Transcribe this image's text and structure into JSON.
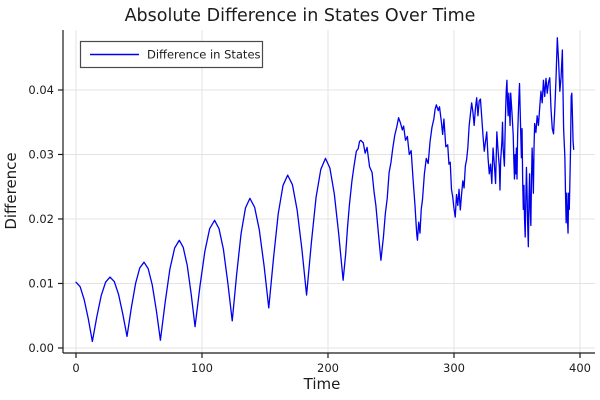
{
  "title": "Absolute Difference in States Over Time",
  "chart_data": {
    "type": "line",
    "title": "Absolute Difference in States Over Time",
    "xlabel": "Time",
    "ylabel": "Difference",
    "xlim": [
      -10.3,
      411.9
    ],
    "ylim": [
      -0.00078,
      0.0493
    ],
    "grid": true,
    "grid_color": "#e3e3e3",
    "spine_color": "#1a1a1a",
    "x_ticks": {
      "values": [
        0,
        100,
        200,
        300,
        400
      ],
      "labels": [
        "0",
        "100",
        "200",
        "300",
        "400"
      ]
    },
    "y_ticks": {
      "values": [
        0,
        0.01,
        0.02,
        0.03,
        0.04
      ],
      "labels": [
        "0.00",
        "0.01",
        "0.02",
        "0.03",
        "0.04"
      ]
    },
    "legend": {
      "position": "top-left",
      "border_color": "#4a4a4a",
      "background": "#ffffff",
      "entries": [
        {
          "label": "Difference in States",
          "color": "#0000ee"
        }
      ]
    },
    "series": [
      {
        "name": "Difference in States",
        "color": "#0000ee",
        "points": [
          [
            0,
            0.0102
          ],
          [
            3.3,
            0.0095
          ],
          [
            6.5,
            0.0075
          ],
          [
            9.8,
            0.0045
          ],
          [
            13,
            0.001
          ],
          [
            16.5,
            0.0048
          ],
          [
            20,
            0.0081
          ],
          [
            23.5,
            0.0102
          ],
          [
            27,
            0.011
          ],
          [
            30.4,
            0.0103
          ],
          [
            33.8,
            0.0083
          ],
          [
            37.1,
            0.0053
          ],
          [
            40.5,
            0.0018
          ],
          [
            43.9,
            0.0062
          ],
          [
            47.3,
            0.01
          ],
          [
            50.6,
            0.0124
          ],
          [
            54,
            0.0133
          ],
          [
            57.3,
            0.0123
          ],
          [
            60.5,
            0.0098
          ],
          [
            63.8,
            0.0058
          ],
          [
            67,
            0.0012
          ],
          [
            70.8,
            0.0071
          ],
          [
            74.5,
            0.0122
          ],
          [
            78.3,
            0.0155
          ],
          [
            82,
            0.0167
          ],
          [
            85.1,
            0.0156
          ],
          [
            88.3,
            0.0128
          ],
          [
            91.4,
            0.0084
          ],
          [
            94.5,
            0.0033
          ],
          [
            98.4,
            0.0096
          ],
          [
            102.3,
            0.015
          ],
          [
            106.1,
            0.0185
          ],
          [
            110,
            0.0198
          ],
          [
            113.5,
            0.0185
          ],
          [
            117,
            0.0153
          ],
          [
            120.5,
            0.0101
          ],
          [
            124,
            0.0042
          ],
          [
            127.5,
            0.0114
          ],
          [
            131,
            0.0177
          ],
          [
            134.5,
            0.0217
          ],
          [
            138,
            0.0232
          ],
          [
            141.8,
            0.0218
          ],
          [
            145.5,
            0.0183
          ],
          [
            149.3,
            0.0127
          ],
          [
            153,
            0.0062
          ],
          [
            156.8,
            0.014
          ],
          [
            160.5,
            0.0208
          ],
          [
            164.3,
            0.0252
          ],
          [
            168,
            0.0268
          ],
          [
            171.8,
            0.0253
          ],
          [
            175.5,
            0.0214
          ],
          [
            179.3,
            0.0153
          ],
          [
            183,
            0.0082
          ],
          [
            186.8,
            0.0163
          ],
          [
            190.5,
            0.0233
          ],
          [
            194.3,
            0.0277
          ],
          [
            198,
            0.0294
          ],
          [
            201.5,
            0.0279
          ],
          [
            205,
            0.0239
          ],
          [
            208.5,
            0.0177
          ],
          [
            212,
            0.0105
          ],
          [
            214,
            0.0145
          ],
          [
            215.5,
            0.0187
          ],
          [
            217,
            0.0222
          ],
          [
            219,
            0.0259
          ],
          [
            220.5,
            0.028
          ],
          [
            222.5,
            0.0305
          ],
          [
            224,
            0.0309
          ],
          [
            225,
            0.032
          ],
          [
            226,
            0.0322
          ],
          [
            228,
            0.0318
          ],
          [
            229.5,
            0.0302
          ],
          [
            231,
            0.0311
          ],
          [
            233,
            0.0281
          ],
          [
            235,
            0.0272
          ],
          [
            236.5,
            0.0243
          ],
          [
            238,
            0.0221
          ],
          [
            240,
            0.0178
          ],
          [
            242,
            0.0136
          ],
          [
            244,
            0.0172
          ],
          [
            245.5,
            0.0208
          ],
          [
            247,
            0.0232
          ],
          [
            248.5,
            0.0272
          ],
          [
            250,
            0.0288
          ],
          [
            251.5,
            0.0311
          ],
          [
            253,
            0.033
          ],
          [
            254.5,
            0.0342
          ],
          [
            256,
            0.0357
          ],
          [
            257.5,
            0.0349
          ],
          [
            259,
            0.0338
          ],
          [
            260,
            0.0344
          ],
          [
            261.5,
            0.0322
          ],
          [
            263,
            0.0328
          ],
          [
            264.5,
            0.03
          ],
          [
            266,
            0.0306
          ],
          [
            267.5,
            0.0262
          ],
          [
            269,
            0.0222
          ],
          [
            270,
            0.019
          ],
          [
            270.5,
            0.0175
          ],
          [
            271,
            0.0167
          ],
          [
            272,
            0.0195
          ],
          [
            273,
            0.0178
          ],
          [
            274,
            0.0215
          ],
          [
            275,
            0.023
          ],
          [
            276.5,
            0.027
          ],
          [
            278,
            0.0294
          ],
          [
            279.5,
            0.0286
          ],
          [
            281,
            0.032
          ],
          [
            282.5,
            0.0342
          ],
          [
            284,
            0.0355
          ],
          [
            285,
            0.037
          ],
          [
            286,
            0.0377
          ],
          [
            287.5,
            0.0368
          ],
          [
            288.5,
            0.0374
          ],
          [
            290,
            0.035
          ],
          [
            291,
            0.0331
          ],
          [
            292,
            0.0355
          ],
          [
            293.5,
            0.0312
          ],
          [
            295,
            0.0315
          ],
          [
            296,
            0.0285
          ],
          [
            297,
            0.0288
          ],
          [
            298,
            0.0246
          ],
          [
            299,
            0.0234
          ],
          [
            300,
            0.0216
          ],
          [
            301,
            0.0203
          ],
          [
            302,
            0.0238
          ],
          [
            303,
            0.0221
          ],
          [
            304,
            0.0246
          ],
          [
            305,
            0.0214
          ],
          [
            306,
            0.0238
          ],
          [
            307,
            0.0259
          ],
          [
            308,
            0.0248
          ],
          [
            309,
            0.0282
          ],
          [
            310,
            0.0292
          ],
          [
            311,
            0.0311
          ],
          [
            312,
            0.0344
          ],
          [
            313,
            0.0362
          ],
          [
            314,
            0.038
          ],
          [
            315,
            0.0366
          ],
          [
            316,
            0.0345
          ],
          [
            317,
            0.0371
          ],
          [
            318,
            0.0388
          ],
          [
            319,
            0.036
          ],
          [
            320,
            0.0383
          ],
          [
            321,
            0.0386
          ],
          [
            322,
            0.0358
          ],
          [
            323,
            0.033
          ],
          [
            324,
            0.0305
          ],
          [
            325,
            0.032
          ],
          [
            326,
            0.0335
          ],
          [
            327,
            0.0295
          ],
          [
            328,
            0.027
          ],
          [
            329,
            0.0285
          ],
          [
            330,
            0.0255
          ],
          [
            331,
            0.031
          ],
          [
            332,
            0.0285
          ],
          [
            333,
            0.0255
          ],
          [
            334,
            0.0335
          ],
          [
            335,
            0.0305
          ],
          [
            336,
            0.028
          ],
          [
            336.5,
            0.0245
          ],
          [
            337,
            0.029
          ],
          [
            338,
            0.032
          ],
          [
            338.5,
            0.035
          ],
          [
            339,
            0.031
          ],
          [
            340,
            0.0282
          ],
          [
            340.5,
            0.033
          ],
          [
            341,
            0.037
          ],
          [
            341.5,
            0.04
          ],
          [
            342,
            0.0415
          ],
          [
            342.5,
            0.038
          ],
          [
            343,
            0.036
          ],
          [
            343.5,
            0.0395
          ],
          [
            344,
            0.037
          ],
          [
            344.5,
            0.0345
          ],
          [
            345,
            0.0395
          ],
          [
            345.5,
            0.038
          ],
          [
            346,
            0.0365
          ],
          [
            347,
            0.033
          ],
          [
            347.5,
            0.029
          ],
          [
            348,
            0.0262
          ],
          [
            348.5,
            0.03
          ],
          [
            349,
            0.027
          ],
          [
            349.5,
            0.031
          ],
          [
            350,
            0.0262
          ],
          [
            350.5,
            0.033
          ],
          [
            351,
            0.036
          ],
          [
            351.5,
            0.0388
          ],
          [
            352,
            0.041
          ],
          [
            352.5,
            0.037
          ],
          [
            353,
            0.033
          ],
          [
            353.5,
            0.0295
          ],
          [
            354,
            0.034
          ],
          [
            354.5,
            0.026
          ],
          [
            355,
            0.0215
          ],
          [
            355.5,
            0.0252
          ],
          [
            356,
            0.02
          ],
          [
            356.5,
            0.0172
          ],
          [
            357,
            0.023
          ],
          [
            357.5,
            0.028
          ],
          [
            358,
            0.024
          ],
          [
            358.5,
            0.019
          ],
          [
            359,
            0.0157
          ],
          [
            359.5,
            0.023
          ],
          [
            360,
            0.027
          ],
          [
            360.5,
            0.0215
          ],
          [
            361,
            0.019
          ],
          [
            361.5,
            0.026
          ],
          [
            362,
            0.031
          ],
          [
            362.5,
            0.028
          ],
          [
            363,
            0.024
          ],
          [
            363.5,
            0.031
          ],
          [
            364,
            0.0348
          ],
          [
            365,
            0.0334
          ],
          [
            366,
            0.036
          ],
          [
            367,
            0.0345
          ],
          [
            368,
            0.0372
          ],
          [
            369,
            0.0398
          ],
          [
            370,
            0.038
          ],
          [
            371,
            0.0415
          ],
          [
            372,
            0.039
          ],
          [
            373,
            0.0418
          ],
          [
            374,
            0.0395
          ],
          [
            375,
            0.0412
          ],
          [
            376,
            0.0419
          ],
          [
            377,
            0.037
          ],
          [
            378,
            0.034
          ],
          [
            379,
            0.0332
          ],
          [
            380,
            0.037
          ],
          [
            381,
            0.042
          ],
          [
            382,
            0.0481
          ],
          [
            383,
            0.0445
          ],
          [
            384,
            0.0398
          ],
          [
            385,
            0.042
          ],
          [
            386,
            0.0462
          ],
          [
            386.5,
            0.04
          ],
          [
            387,
            0.034
          ],
          [
            388,
            0.0295
          ],
          [
            388.5,
            0.024
          ],
          [
            389,
            0.0194
          ],
          [
            389.5,
            0.024
          ],
          [
            390,
            0.0205
          ],
          [
            390.5,
            0.0178
          ],
          [
            391,
            0.024
          ],
          [
            391.5,
            0.0215
          ],
          [
            392,
            0.026
          ],
          [
            392.5,
            0.031
          ],
          [
            393,
            0.039
          ],
          [
            393.5,
            0.0395
          ],
          [
            394,
            0.036
          ],
          [
            394.5,
            0.032
          ],
          [
            395,
            0.0308
          ]
        ]
      }
    ]
  }
}
